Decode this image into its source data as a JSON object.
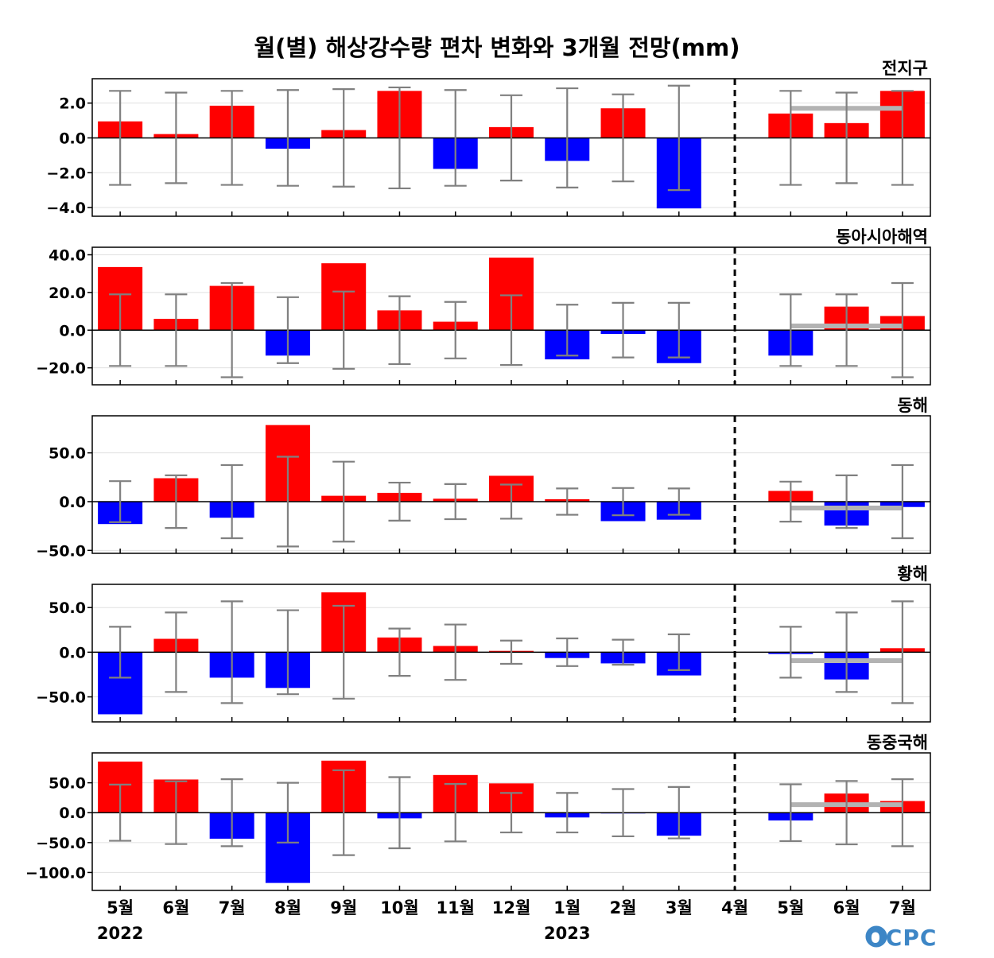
{
  "title": "월(별) 해상강수량 편차 변화와 3개월 전망(mm)",
  "logo": "OCPC",
  "colors": {
    "positive": "#ff0000",
    "negative": "#0000ff",
    "errorbar": "#808080",
    "forecast_mean": "#b3b3b3",
    "zero_line": "#000000",
    "grid": "#e0e0e0"
  },
  "x_labels": [
    "5월",
    "6월",
    "7월",
    "8월",
    "9월",
    "10월",
    "11월",
    "12월",
    "1월",
    "2월",
    "3월",
    "4월",
    "5월",
    "6월",
    "7월"
  ],
  "year_labels": [
    {
      "text": "2022",
      "index": 0
    },
    {
      "text": "2023",
      "index": 8
    }
  ],
  "divider_after_index": 11,
  "chart_data": [
    {
      "type": "bar",
      "title": "전지구",
      "ylim": [
        -4.5,
        3.4
      ],
      "yticks": [
        -4.0,
        -2.0,
        0.0,
        2.0
      ],
      "ytick_labels": [
        "−4.0",
        "−2.0",
        "0.0",
        "2.0"
      ],
      "values": [
        0.95,
        0.22,
        1.85,
        -0.62,
        0.45,
        2.7,
        -1.78,
        0.62,
        -1.32,
        1.7,
        -4.05,
        0,
        1.4,
        0.85,
        2.7
      ],
      "error": [
        2.7,
        2.6,
        2.7,
        2.75,
        2.8,
        2.9,
        2.75,
        2.45,
        2.85,
        2.5,
        3.0,
        null,
        2.7,
        2.6,
        2.7
      ],
      "forecast_mean": 1.7
    },
    {
      "type": "bar",
      "title": "동아시아해역",
      "ylim": [
        -29,
        44
      ],
      "yticks": [
        -20.0,
        0.0,
        20.0,
        40.0
      ],
      "ytick_labels": [
        "−20.0",
        "0.0",
        "20.0",
        "40.0"
      ],
      "values": [
        33.5,
        6.0,
        23.5,
        -13.5,
        35.5,
        10.5,
        4.5,
        38.5,
        -15.5,
        -2.0,
        -17.5,
        0,
        -13.5,
        12.5,
        7.5
      ],
      "error": [
        19.0,
        19.0,
        25.0,
        17.5,
        20.5,
        18.0,
        15.0,
        18.5,
        13.5,
        14.5,
        14.5,
        null,
        19.0,
        19.0,
        25.0
      ],
      "forecast_mean": 2.2
    },
    {
      "type": "bar",
      "title": "동해",
      "ylim": [
        -53,
        88
      ],
      "yticks": [
        -50.0,
        0.0,
        50.0
      ],
      "ytick_labels": [
        "−50.0",
        "0.0",
        "50.0"
      ],
      "values": [
        -23.0,
        24.0,
        -16.5,
        78.5,
        6.0,
        9.0,
        3.0,
        26.5,
        2.5,
        -20.0,
        -18.5,
        0,
        11.0,
        -24.5,
        -5.5
      ],
      "error": [
        21.0,
        27.0,
        37.5,
        46.0,
        41.0,
        19.5,
        18.0,
        17.5,
        13.5,
        14.0,
        13.5,
        null,
        20.5,
        27.0,
        37.5
      ],
      "forecast_mean": -6.5
    },
    {
      "type": "bar",
      "title": "황해",
      "ylim": [
        -78,
        76
      ],
      "yticks": [
        -50.0,
        0.0,
        50.0
      ],
      "ytick_labels": [
        "−50.0",
        "0.0",
        "50.0"
      ],
      "values": [
        -69.5,
        15.0,
        -28.5,
        -40.0,
        67.0,
        16.5,
        7.0,
        1.5,
        -6.5,
        -12.5,
        -26.0,
        0,
        -2.0,
        -30.5,
        4.5
      ],
      "error": [
        28.5,
        44.5,
        57.0,
        47.0,
        52.0,
        26.5,
        31.0,
        13.0,
        15.5,
        14.0,
        20.0,
        null,
        28.5,
        44.5,
        57.0
      ],
      "forecast_mean": -9.5
    },
    {
      "type": "bar",
      "title": "동중국해",
      "ylim": [
        -130,
        100
      ],
      "yticks": [
        -100.0,
        -50.0,
        0.0,
        50.0
      ],
      "ytick_labels": [
        "−100.0",
        "−50.0",
        "0.0",
        "50.0"
      ],
      "values": [
        85.5,
        55.5,
        -43.5,
        -117.5,
        87.0,
        -9.5,
        63.0,
        49.0,
        -8.0,
        -0.5,
        -38.5,
        0,
        -13.0,
        32.0,
        19.5
      ],
      "error": [
        47.0,
        52.5,
        56.0,
        50.0,
        71.0,
        59.5,
        48.0,
        33.0,
        33.0,
        39.5,
        43.0,
        null,
        47.5,
        53.0,
        56.0
      ],
      "forecast_mean": 13.5
    }
  ]
}
